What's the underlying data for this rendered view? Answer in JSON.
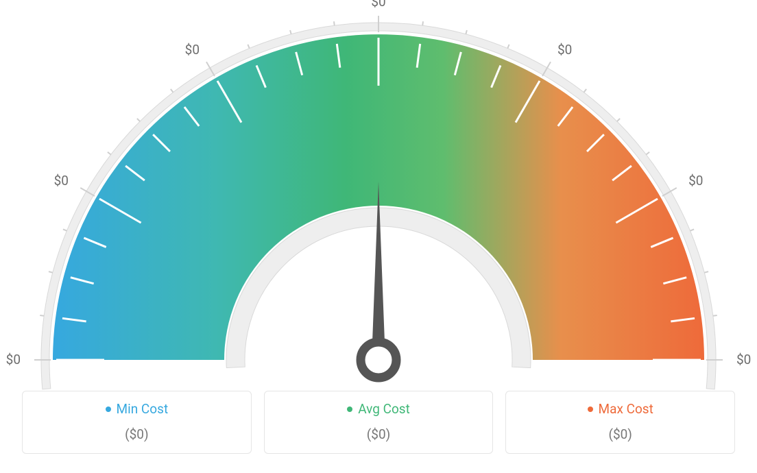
{
  "gauge": {
    "type": "gauge",
    "tick_labels": [
      "$0",
      "$0",
      "$0",
      "$0",
      "$0",
      "$0",
      "$0"
    ],
    "tick_label_color": "#6c6c6c",
    "tick_label_fontsize": 19,
    "background_color": "#ffffff",
    "outer_ring_color": "#eeeeee",
    "outer_ring_stroke": "#d9d9d9",
    "inner_mask_color": "#eeeeee",
    "inner_mask_stroke": "#d9d9d9",
    "tick_stroke_color": "#ffffff",
    "tick_stroke_width": 3,
    "outer_tick_stroke": "#cfcfcf",
    "gradient_colors": {
      "start": "#36a8df",
      "mid1": "#3fb8b2",
      "mid2": "#3fb777",
      "mid3": "#5fbd6e",
      "mid4": "#e88f4c",
      "end": "#ee6a3a"
    },
    "needle_color": "#555555",
    "needle_angle_deg": 90,
    "outer_radius": 475,
    "inner_radius": 225,
    "ring_width": 250,
    "aspect_ratio": 1.94
  },
  "legend": {
    "items": [
      {
        "label": "Min Cost",
        "color": "#36a8df",
        "value": "($0)"
      },
      {
        "label": "Avg Cost",
        "color": "#3fb777",
        "value": "($0)"
      },
      {
        "label": "Max Cost",
        "color": "#ee6a3a",
        "value": "($0)"
      }
    ],
    "border_color": "#e5e5e5",
    "value_color": "#777777",
    "fontsize": 19
  }
}
